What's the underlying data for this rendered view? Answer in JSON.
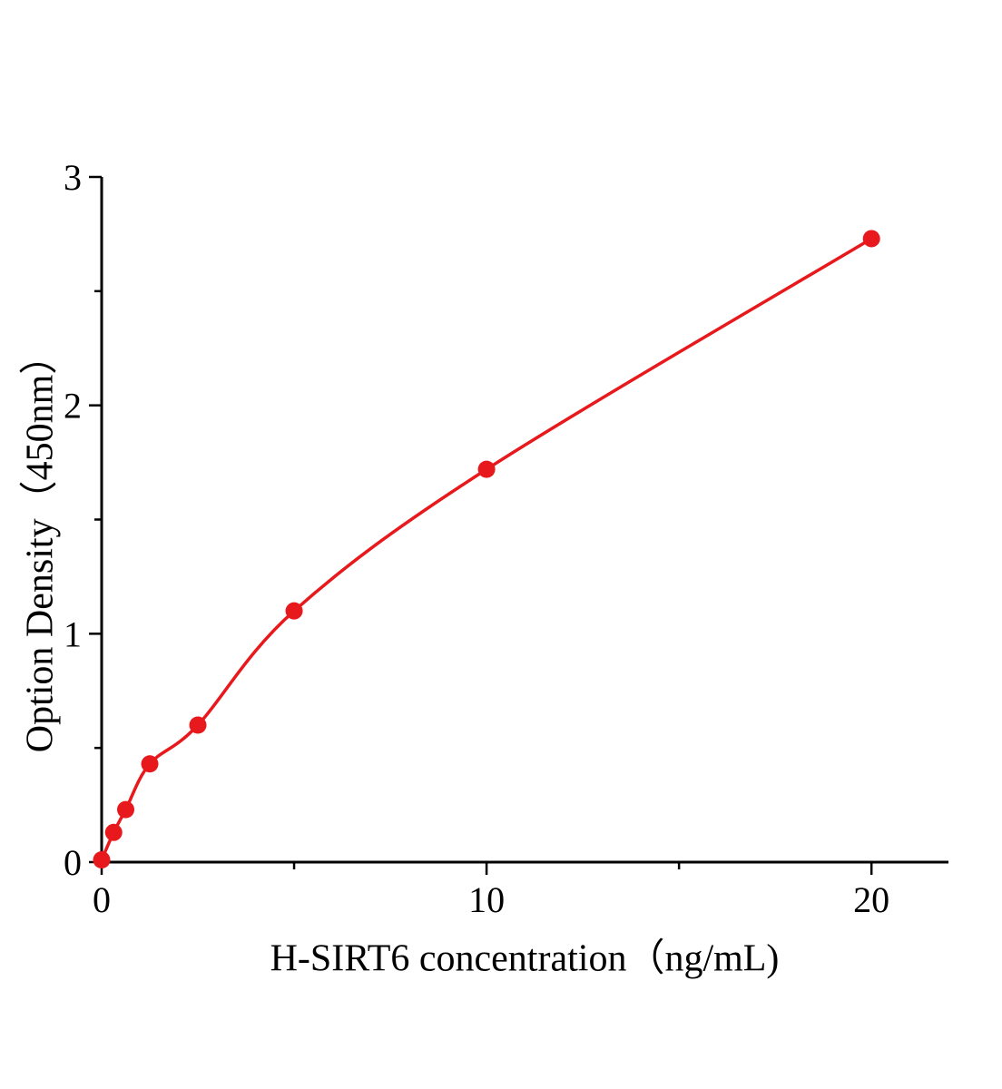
{
  "chart_data": {
    "type": "scatter",
    "title": "",
    "xlabel": "H-SIRT6 concentration（ng/mL)",
    "ylabel": "Option Density（450nm）",
    "x": [
      0,
      0.3125,
      0.625,
      1.25,
      2.5,
      5,
      10,
      20
    ],
    "y": [
      0.01,
      0.13,
      0.23,
      0.43,
      0.6,
      1.1,
      1.72,
      2.73
    ],
    "xlim": [
      0,
      22
    ],
    "ylim": [
      0,
      3
    ],
    "xticks": [
      0,
      10,
      20
    ],
    "xticks_minor": [
      5,
      15
    ],
    "yticks": [
      0,
      1,
      2,
      3
    ],
    "yticks_minor": [
      0.5,
      1.5,
      2.5
    ],
    "grid": false,
    "legend": "none",
    "marker_color": "#e8191c",
    "line_color": "#e8191c",
    "axis_color": "#000000",
    "fit_style": "smooth curve through points (saturating / power-law standard curve)"
  }
}
